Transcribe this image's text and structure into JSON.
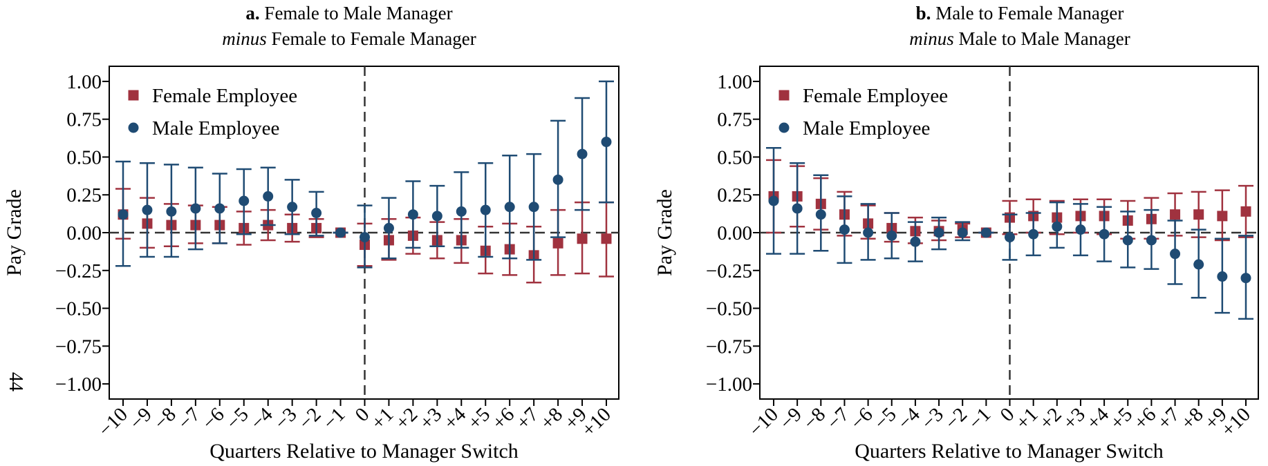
{
  "page_number": "44",
  "colors": {
    "female": "#A0323F",
    "male": "#1F4B73",
    "zero_line": "#333333"
  },
  "chart_data": [
    {
      "type": "scatter",
      "title_bold": "a.",
      "title_line1": "Female to Male Manager",
      "title_line2_italic": "minus",
      "title_line2": "Female to Female Manager",
      "xlabel": "Quarters Relative to Manager Switch",
      "ylabel": "Pay Grade",
      "ylim": [
        -1.1,
        1.1
      ],
      "yticks": [
        1.0,
        0.75,
        0.5,
        0.25,
        0.0,
        -0.25,
        -0.5,
        -0.75,
        -1.0
      ],
      "ytick_labels": [
        "1.00",
        "0.75",
        "0.50",
        "0.25",
        "0.00",
        "−0.25",
        "−0.50",
        "−0.75",
        "−1.00"
      ],
      "x": [
        -10,
        -9,
        -8,
        -7,
        -6,
        -5,
        -4,
        -3,
        -2,
        -1,
        0,
        1,
        2,
        3,
        4,
        5,
        6,
        7,
        8,
        9,
        10
      ],
      "xtick_labels": [
        "−10",
        "−9",
        "−8",
        "−7",
        "−6",
        "−5",
        "−4",
        "−3",
        "−2",
        "−1",
        "0",
        "+1",
        "+2",
        "+3",
        "+4",
        "+5",
        "+6",
        "+7",
        "+8",
        "+9",
        "+10"
      ],
      "vline": 0,
      "hline": 0,
      "legend_position": "top-left",
      "series": [
        {
          "name": "Female Employee",
          "marker": "square",
          "values": [
            0.12,
            0.06,
            0.05,
            0.05,
            0.05,
            0.03,
            0.05,
            0.03,
            0.03,
            0.0,
            -0.08,
            -0.05,
            -0.02,
            -0.05,
            -0.05,
            -0.12,
            -0.11,
            -0.15,
            -0.07,
            -0.04,
            -0.04
          ],
          "ci_low": [
            -0.04,
            -0.1,
            -0.09,
            -0.07,
            -0.07,
            -0.08,
            -0.05,
            -0.06,
            -0.03,
            0.0,
            -0.22,
            -0.18,
            -0.14,
            -0.17,
            -0.2,
            -0.27,
            -0.28,
            -0.33,
            -0.28,
            -0.27,
            -0.29
          ],
          "ci_high": [
            0.29,
            0.23,
            0.19,
            0.18,
            0.17,
            0.14,
            0.15,
            0.12,
            0.09,
            0.0,
            0.06,
            0.09,
            0.1,
            0.07,
            0.09,
            0.04,
            0.06,
            0.04,
            0.15,
            0.2,
            0.2
          ]
        },
        {
          "name": "Male Employee",
          "marker": "circle",
          "values": [
            0.12,
            0.15,
            0.14,
            0.16,
            0.16,
            0.21,
            0.24,
            0.17,
            0.13,
            0.0,
            -0.03,
            0.03,
            0.12,
            0.11,
            0.14,
            0.15,
            0.17,
            0.17,
            0.35,
            0.52,
            0.6
          ],
          "ci_low": [
            -0.22,
            -0.16,
            -0.16,
            -0.11,
            -0.07,
            -0.01,
            0.05,
            -0.01,
            -0.02,
            0.0,
            -0.23,
            -0.17,
            -0.1,
            -0.09,
            -0.1,
            -0.16,
            -0.17,
            -0.18,
            -0.03,
            0.15,
            0.2
          ],
          "ci_high": [
            0.47,
            0.46,
            0.45,
            0.43,
            0.39,
            0.42,
            0.43,
            0.35,
            0.27,
            0.0,
            0.18,
            0.23,
            0.34,
            0.31,
            0.4,
            0.46,
            0.51,
            0.52,
            0.74,
            0.89,
            1.0
          ]
        }
      ]
    },
    {
      "type": "scatter",
      "title_bold": "b.",
      "title_line1": "Male to Female Manager",
      "title_line2_italic": "minus",
      "title_line2": "Male to Male Manager",
      "xlabel": "Quarters Relative to Manager Switch",
      "ylabel": "Pay Grade",
      "ylim": [
        -1.1,
        1.1
      ],
      "yticks": [
        1.0,
        0.75,
        0.5,
        0.25,
        0.0,
        -0.25,
        -0.5,
        -0.75,
        -1.0
      ],
      "ytick_labels": [
        "1.00",
        "0.75",
        "0.50",
        "0.25",
        "0.00",
        "−0.25",
        "−0.50",
        "−0.75",
        "−1.00"
      ],
      "x": [
        -10,
        -9,
        -8,
        -7,
        -6,
        -5,
        -4,
        -3,
        -2,
        -1,
        0,
        1,
        2,
        3,
        4,
        5,
        6,
        7,
        8,
        9,
        10
      ],
      "xtick_labels": [
        "−10",
        "−9",
        "−8",
        "−7",
        "−6",
        "−5",
        "−4",
        "−3",
        "−2",
        "−1",
        "0",
        "+1",
        "+2",
        "+3",
        "+4",
        "+5",
        "+6",
        "+7",
        "+8",
        "+9",
        "+10"
      ],
      "vline": 0,
      "hline": 0,
      "legend_position": "top-left",
      "series": [
        {
          "name": "Female Employee",
          "marker": "square",
          "values": [
            0.24,
            0.24,
            0.19,
            0.12,
            0.06,
            0.03,
            0.01,
            0.01,
            0.02,
            0.0,
            0.1,
            0.11,
            0.1,
            0.11,
            0.11,
            0.08,
            0.09,
            0.12,
            0.12,
            0.11,
            0.14
          ],
          "ci_low": [
            0.0,
            0.04,
            0.02,
            -0.02,
            -0.04,
            -0.06,
            -0.07,
            -0.05,
            -0.03,
            0.0,
            -0.01,
            0.0,
            -0.01,
            0.0,
            -0.01,
            -0.04,
            -0.04,
            -0.02,
            -0.03,
            -0.05,
            -0.03
          ],
          "ci_high": [
            0.48,
            0.44,
            0.36,
            0.27,
            0.18,
            0.13,
            0.1,
            0.08,
            0.06,
            0.0,
            0.21,
            0.22,
            0.21,
            0.22,
            0.22,
            0.21,
            0.23,
            0.26,
            0.27,
            0.28,
            0.31
          ]
        },
        {
          "name": "Male Employee",
          "marker": "circle",
          "values": [
            0.21,
            0.16,
            0.12,
            0.02,
            0.0,
            -0.02,
            -0.06,
            0.0,
            0.0,
            0.0,
            -0.03,
            -0.01,
            0.04,
            0.02,
            -0.01,
            -0.05,
            -0.05,
            -0.14,
            -0.21,
            -0.29,
            -0.3
          ],
          "ci_low": [
            -0.14,
            -0.14,
            -0.12,
            -0.2,
            -0.18,
            -0.17,
            -0.19,
            -0.11,
            -0.05,
            0.0,
            -0.18,
            -0.15,
            -0.1,
            -0.15,
            -0.19,
            -0.23,
            -0.24,
            -0.34,
            -0.43,
            -0.53,
            -0.57
          ],
          "ci_high": [
            0.56,
            0.46,
            0.38,
            0.24,
            0.19,
            0.13,
            0.07,
            0.1,
            0.07,
            0.0,
            0.12,
            0.13,
            0.2,
            0.19,
            0.17,
            0.14,
            0.15,
            0.08,
            0.02,
            -0.04,
            -0.02
          ]
        }
      ]
    }
  ]
}
